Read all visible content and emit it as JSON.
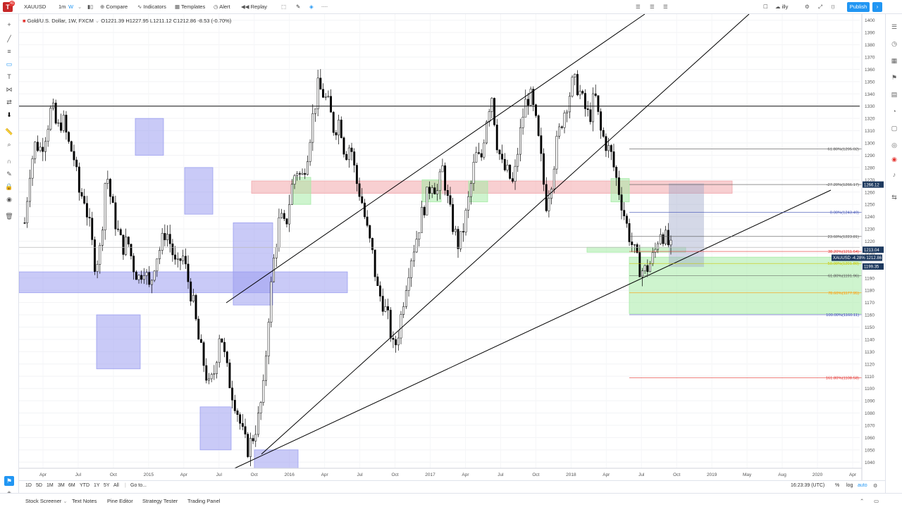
{
  "toolbar": {
    "logo_badge": "41",
    "symbol": "XAUUSD",
    "interval_1m": "1m",
    "interval_w": "W",
    "compare": "Compare",
    "indicators": "Indicators",
    "templates": "Templates",
    "alert": "Alert",
    "replay": "Replay",
    "layout_name": "illy",
    "publish": "Publish"
  },
  "legend": {
    "title": "Gold/U.S. Dollar, 1W, FXCM",
    "ohlc": "O1221.39  H1227.95  L1211.12  C1212.86  -8.53 (-0.70%)"
  },
  "colors": {
    "candle_up": "#ffffff",
    "candle_down": "#000000",
    "zone_blue": "#9c9ff0",
    "zone_green": "#a5eba5",
    "zone_red": "#f2a7ac",
    "fib_red": "#e53935",
    "fib_blue": "#3f51b5",
    "price_label": "#1e3a5f"
  },
  "chart_data": {
    "type": "candlestick",
    "symbol": "XAUUSD",
    "timeframe": "1W",
    "ylim": [
      1035,
      1405
    ],
    "y_ticks": [
      1400,
      1390,
      1380,
      1370,
      1360,
      1350,
      1340,
      1330,
      1320,
      1310,
      1300,
      1290,
      1280,
      1270,
      1260,
      1250,
      1240,
      1230,
      1220,
      1210,
      1200,
      1190,
      1180,
      1170,
      1160,
      1150,
      1140,
      1130,
      1120,
      1110,
      1100,
      1090,
      1080,
      1070,
      1060,
      1050,
      1040
    ],
    "x_ticks": [
      "Apr",
      "Jul",
      "Oct",
      "2015",
      "Apr",
      "Jul",
      "Oct",
      "2016",
      "Apr",
      "Jul",
      "Oct",
      "2017",
      "Apr",
      "Jul",
      "Oct",
      "2018",
      "Apr",
      "Jul",
      "Oct",
      "2019",
      "May",
      "Aug",
      "2020",
      "Apr"
    ],
    "close_path": [
      1235,
      1280,
      1300,
      1295,
      1310,
      1330,
      1310,
      1320,
      1300,
      1290,
      1260,
      1255,
      1230,
      1200,
      1215,
      1280,
      1250,
      1230,
      1215,
      1220,
      1200,
      1190,
      1200,
      1180,
      1205,
      1215,
      1230,
      1215,
      1195,
      1210,
      1190,
      1170,
      1140,
      1120,
      1100,
      1115,
      1150,
      1120,
      1100,
      1085,
      1065,
      1050,
      1060,
      1075,
      1100,
      1165,
      1210,
      1240,
      1230,
      1260,
      1280,
      1270,
      1290,
      1320,
      1345,
      1340,
      1330,
      1310,
      1320,
      1290,
      1300,
      1270,
      1255,
      1230,
      1210,
      1180,
      1170,
      1155,
      1130,
      1150,
      1180,
      1205,
      1220,
      1240,
      1255,
      1270,
      1260,
      1280,
      1250,
      1230,
      1215,
      1235,
      1260,
      1290,
      1285,
      1320,
      1340,
      1300,
      1280,
      1275,
      1265,
      1300,
      1330,
      1340,
      1320,
      1290,
      1250,
      1270,
      1300,
      1320,
      1335,
      1350,
      1345,
      1330,
      1320,
      1340,
      1310,
      1300,
      1290,
      1270,
      1250,
      1230,
      1215,
      1200,
      1195,
      1200,
      1210,
      1230,
      1222,
      1213
    ],
    "highlight_levels": [
      {
        "label": "1266.12",
        "price": 1266.12
      },
      {
        "label": "1213.04",
        "price": 1213.04
      },
      {
        "label": "XAUUSD -4.28%  1212.86",
        "price": 1206.5
      },
      {
        "label": "1199.35",
        "price": 1199.35
      }
    ],
    "fib_levels": [
      {
        "label": "61.80%(1295.02)",
        "price": 1295.02,
        "color": "#555555"
      },
      {
        "label": "-27.20%(1266.17)",
        "price": 1266.17,
        "color": "#555555"
      },
      {
        "label": "0.00%(1243.49)",
        "price": 1243.49,
        "color": "#3f51b5"
      },
      {
        "label": "23.60%(1223.81)",
        "price": 1223.81,
        "color": "#555555"
      },
      {
        "label": "38.20%(1211.64)",
        "price": 1211.64,
        "color": "#e53935"
      },
      {
        "label": "50.00%(1201.80)",
        "price": 1201.8,
        "color": "#c8c800"
      },
      {
        "label": "61.80%(1191.96)",
        "price": 1191.96,
        "color": "#555555"
      },
      {
        "label": "78.60%(1177.95)",
        "price": 1177.95,
        "color": "#ff9800"
      },
      {
        "label": "100.00%(1160.11)",
        "price": 1160.11,
        "color": "#3f51b5"
      },
      {
        "label": "161.80%(1108.58)",
        "price": 1108.58,
        "color": "#e53935"
      }
    ]
  },
  "timeframes": [
    "1D",
    "5D",
    "1M",
    "3M",
    "6M",
    "YTD",
    "1Y",
    "5Y",
    "All"
  ],
  "goto": "Go to...",
  "clock": "16:23:39 (UTC)",
  "scale_pct": "%",
  "scale_log": "log",
  "scale_auto": "auto",
  "footer_tabs": [
    "Stock Screener",
    "Text Notes",
    "Pine Editor",
    "Strategy Tester",
    "Trading Panel"
  ]
}
